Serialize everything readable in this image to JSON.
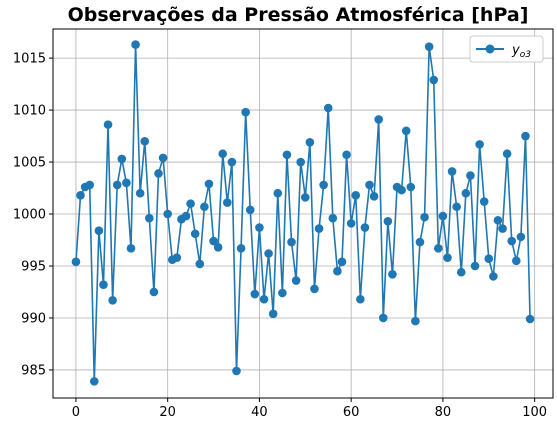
{
  "chart_data": {
    "type": "line",
    "title": "Observações da Pressão Atmosférica [hPa]",
    "xlabel": "",
    "ylabel": "",
    "xlim": [
      -5,
      104
    ],
    "ylim": [
      982.3,
      1017.8
    ],
    "x_ticks": [
      0,
      20,
      40,
      60,
      80,
      100
    ],
    "y_ticks": [
      985,
      990,
      995,
      1000,
      1005,
      1010,
      1015
    ],
    "grid": true,
    "legend_position": "top-right",
    "colors": {
      "series": "#1f77b4",
      "grid": "#b0b0b0"
    },
    "series": [
      {
        "name": "y",
        "name_sub": "o3",
        "x": [
          0,
          1,
          2,
          3,
          4,
          5,
          6,
          7,
          8,
          9,
          10,
          11,
          12,
          13,
          14,
          15,
          16,
          17,
          18,
          19,
          20,
          21,
          22,
          23,
          24,
          25,
          26,
          27,
          28,
          29,
          30,
          31,
          32,
          33,
          34,
          35,
          36,
          37,
          38,
          39,
          40,
          41,
          42,
          43,
          44,
          45,
          46,
          47,
          48,
          49,
          50,
          51,
          52,
          53,
          54,
          55,
          56,
          57,
          58,
          59,
          60,
          61,
          62,
          63,
          64,
          65,
          66,
          67,
          68,
          69,
          70,
          71,
          72,
          73,
          74,
          75,
          76,
          77,
          78,
          79,
          80,
          81,
          82,
          83,
          84,
          85,
          86,
          87,
          88,
          89,
          90,
          91,
          92,
          93,
          94,
          95,
          96,
          97,
          98,
          99
        ],
        "values": [
          995.4,
          1001.8,
          1002.6,
          1002.8,
          983.9,
          998.4,
          993.2,
          1008.6,
          991.7,
          1002.8,
          1005.3,
          1003.0,
          996.7,
          1016.3,
          1002.0,
          1007.0,
          999.6,
          992.5,
          1003.9,
          1005.4,
          1000.0,
          995.6,
          995.8,
          999.5,
          999.8,
          1001.0,
          998.1,
          995.2,
          1000.7,
          1002.9,
          997.4,
          996.8,
          1005.8,
          1001.1,
          1005.0,
          984.9,
          996.7,
          1009.8,
          1000.4,
          992.3,
          998.7,
          991.8,
          996.2,
          990.4,
          1002.0,
          992.4,
          1005.7,
          997.3,
          993.6,
          1005.0,
          1001.6,
          1006.9,
          992.8,
          998.6,
          1002.8,
          1010.2,
          999.6,
          994.5,
          995.4,
          1005.7,
          999.1,
          1001.8,
          991.8,
          998.7,
          1002.8,
          1001.7,
          1009.1,
          990.0,
          999.3,
          994.2,
          1002.6,
          1002.3,
          1008.0,
          1002.6,
          989.7,
          997.3,
          999.7,
          1016.1,
          1012.9,
          996.7,
          999.8,
          995.8,
          1004.1,
          1000.7,
          994.4,
          1002.0,
          1003.7,
          995.0,
          1006.7,
          1001.2,
          995.7,
          994.0,
          999.4,
          998.6,
          1005.8,
          997.4,
          995.5,
          997.8,
          1007.5,
          989.9
        ]
      }
    ]
  }
}
